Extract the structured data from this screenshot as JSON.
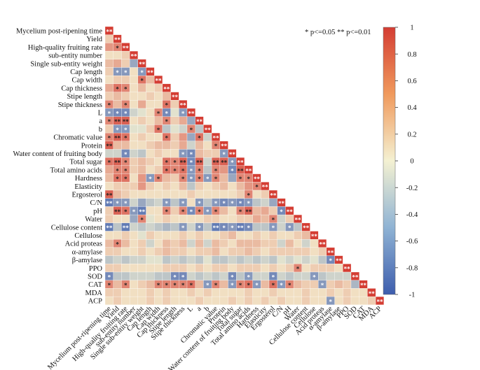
{
  "chart_data": {
    "type": "heatmap",
    "subtype": "lower-triangle correlation matrix",
    "variables": [
      "Mycelium post-ripening time",
      "Yield",
      "High-quality fruiting rate",
      "sub-entity number",
      "Single sub-entity weight",
      "Cap length",
      "Cap width",
      "Cap thickness",
      "Stipe length",
      "Stipe thickness",
      "L",
      "a",
      "b",
      "Chromatic value",
      "Protein",
      "Water content of fruiting body",
      "Total sugar",
      "Total amino acids",
      "Hardness",
      "Elasticity",
      "Ergosterol",
      "C/N",
      "pH",
      "Water",
      "Cellulose content",
      "Cellulose",
      "Acid proteas",
      "α-amylase",
      "β-amylase",
      "PPO",
      "SOD",
      "CAT",
      "MDA",
      "ACP"
    ],
    "rows": [
      [
        1
      ],
      [
        0.2,
        1
      ],
      [
        0.5,
        0.6,
        1
      ],
      [
        0.1,
        0.1,
        0.2,
        1
      ],
      [
        0.3,
        0.4,
        0.2,
        -0.5,
        1
      ],
      [
        0.2,
        -0.6,
        -0.6,
        0.1,
        -0.6,
        1
      ],
      [
        0.1,
        0.2,
        0.2,
        0.1,
        0.7,
        0.3,
        1
      ],
      [
        0.4,
        0.7,
        0.6,
        0.1,
        0.3,
        0.1,
        0.2,
        1
      ],
      [
        0.2,
        0.3,
        0.2,
        0.1,
        0.1,
        0.2,
        0.1,
        0.3,
        1
      ],
      [
        0.6,
        0.3,
        0.6,
        0.1,
        0.4,
        0.1,
        0.1,
        0.7,
        0.2,
        1
      ],
      [
        -0.6,
        -0.7,
        -0.7,
        -0.2,
        -0.1,
        0.1,
        0.6,
        -0.7,
        -0.1,
        -0.6,
        1
      ],
      [
        0.6,
        0.8,
        0.8,
        0.1,
        0.2,
        0.1,
        0.3,
        0.6,
        0.2,
        0.4,
        -0.5,
        1
      ],
      [
        0.2,
        -0.6,
        -0.6,
        -0.1,
        -0.1,
        0.2,
        0.7,
        -0.3,
        -0.1,
        -0.2,
        0.6,
        -0.3,
        1
      ],
      [
        0.6,
        0.8,
        0.7,
        0.1,
        0.2,
        0.1,
        0.1,
        0.7,
        0.2,
        0.5,
        -0.5,
        0.7,
        -0.2,
        1
      ],
      [
        0.8,
        0.3,
        0.3,
        0.1,
        0.1,
        0.2,
        0.3,
        0.3,
        0.2,
        0.4,
        -0.2,
        0.3,
        0.1,
        0.6,
        1
      ],
      [
        -0.2,
        -0.2,
        -0.7,
        -0.2,
        -0.3,
        0.1,
        0.2,
        0.1,
        0.1,
        -0.6,
        -0.7,
        0.3,
        0.2,
        0.2,
        -0.6,
        1
      ],
      [
        0.7,
        0.8,
        0.6,
        0.2,
        0.3,
        0.2,
        0.1,
        0.7,
        0.6,
        0.8,
        -0.7,
        0.8,
        -0.2,
        0.8,
        0.8,
        -0.6,
        1
      ],
      [
        0.4,
        0.6,
        0.6,
        0.2,
        0.3,
        0.1,
        0.2,
        0.7,
        0.6,
        0.7,
        -0.6,
        0.6,
        -0.3,
        0.6,
        0.5,
        -0.7,
        0.8,
        1
      ],
      [
        0.3,
        0.7,
        0.7,
        0.1,
        0.5,
        -0.6,
        0.6,
        0.3,
        0.2,
        0.6,
        -0.6,
        0.6,
        -0.6,
        0.6,
        0.3,
        -0.5,
        0.6,
        0.6,
        1
      ],
      [
        0.1,
        0.2,
        0.2,
        0.2,
        0.5,
        0.2,
        0.1,
        0.2,
        0.1,
        0.3,
        -0.3,
        0.2,
        0.1,
        0.2,
        0.3,
        0.1,
        0.3,
        0.5,
        0.6,
        1
      ],
      [
        0.8,
        0.3,
        0.2,
        0.1,
        0.1,
        0.1,
        0.1,
        0.1,
        0.1,
        0.1,
        0.2,
        0.1,
        0.1,
        0.1,
        0.1,
        0.1,
        0.2,
        0.6,
        0.1,
        0.2,
        1
      ],
      [
        -0.8,
        -0.6,
        -0.6,
        -0.2,
        -0.5,
        -0.3,
        -0.2,
        -0.6,
        -0.3,
        -0.6,
        0.1,
        -0.6,
        -0.3,
        -0.6,
        -0.7,
        -0.6,
        -0.7,
        -0.6,
        -0.3,
        -0.2,
        -0.5,
        1
      ],
      [
        0.2,
        0.8,
        0.7,
        -0.6,
        -0.8,
        0.1,
        0.1,
        0.6,
        0.2,
        0.6,
        -0.7,
        0.6,
        -0.6,
        0.6,
        0.3,
        0.1,
        0.6,
        0.8,
        0.3,
        0.4,
        0.2,
        -0.7,
        1
      ],
      [
        0.2,
        0.1,
        0.1,
        -0.5,
        0.6,
        -0.1,
        0.1,
        0.2,
        0.1,
        0.1,
        0.1,
        0.1,
        0.2,
        0.2,
        0.1,
        0.1,
        0.2,
        0.2,
        0.4,
        0.3,
        0.6,
        -0.2,
        0.2,
        1
      ],
      [
        -0.8,
        -0.3,
        -0.8,
        -0.2,
        -0.3,
        -0.2,
        -0.3,
        -0.4,
        -0.3,
        -0.6,
        -0.2,
        -0.6,
        -0.3,
        -0.8,
        -0.7,
        -0.6,
        -0.8,
        -0.7,
        -0.3,
        -0.3,
        -0.6,
        -0.2,
        -0.6,
        -0.3,
        1
      ],
      [
        0.1,
        0.1,
        0.2,
        0.1,
        -0.1,
        0.2,
        0.1,
        0.1,
        0.1,
        0.2,
        0.1,
        0.2,
        0.1,
        0.1,
        0.2,
        0.3,
        0.1,
        0.1,
        0.2,
        0.1,
        0.2,
        0.1,
        0.1,
        0.2,
        0.3,
        1
      ],
      [
        0.3,
        0.6,
        0.3,
        0.1,
        0.2,
        -0.2,
        0.1,
        0.3,
        0.2,
        0.3,
        -0.2,
        0.3,
        -0.2,
        0.3,
        0.2,
        0.1,
        0.3,
        0.3,
        0.3,
        0.2,
        0.2,
        -0.2,
        0.3,
        0.1,
        -0.2,
        0.1,
        1
      ],
      [
        0.2,
        0.2,
        0.1,
        0.1,
        0.2,
        0.1,
        0.2,
        0.3,
        0.2,
        0.2,
        0.1,
        0.2,
        0.2,
        0.3,
        0.1,
        0.2,
        0.2,
        0.3,
        0.2,
        0.1,
        0.2,
        0.2,
        0.2,
        0.2,
        0.2,
        0.1,
        0.2,
        1
      ],
      [
        -0.3,
        -0.2,
        -0.3,
        -0.2,
        -0.2,
        -0.1,
        -0.1,
        -0.3,
        -0.2,
        -0.3,
        -0.2,
        -0.3,
        -0.1,
        -0.3,
        -0.3,
        -0.2,
        -0.3,
        -0.2,
        -0.3,
        -0.2,
        -0.3,
        -0.1,
        -0.2,
        -0.1,
        -0.2,
        -0.1,
        -0.3,
        -0.7,
        1
      ],
      [
        0.2,
        0.2,
        0.1,
        0.1,
        0.1,
        0.1,
        0.1,
        0.2,
        0.2,
        0.2,
        0.1,
        0.2,
        0.1,
        0.2,
        0.2,
        0.1,
        0.2,
        0.2,
        0.2,
        0.1,
        0.2,
        0.1,
        0.2,
        0.6,
        0.1,
        0.2,
        0.2,
        0.2,
        0.1,
        1
      ],
      [
        -0.7,
        -0.3,
        -0.3,
        -0.2,
        -0.2,
        -0.2,
        -0.3,
        -0.3,
        -0.7,
        -0.7,
        -0.2,
        -0.3,
        -0.2,
        -0.3,
        -0.2,
        -0.7,
        -0.3,
        -0.6,
        -0.2,
        -0.2,
        -0.7,
        -0.2,
        -0.3,
        -0.2,
        -0.2,
        -0.6,
        -0.3,
        -0.2,
        -0.2,
        -0.2,
        1
      ],
      [
        0.6,
        0.3,
        0.6,
        0.1,
        0.2,
        0.3,
        0.6,
        0.6,
        0.6,
        0.6,
        0.7,
        0.3,
        -0.6,
        0.6,
        0.3,
        -0.6,
        0.6,
        0.7,
        -0.6,
        0.3,
        0.7,
        -0.6,
        0.6,
        0.3,
        0.2,
        0.2,
        -0.6,
        0.2,
        0.3,
        0.2,
        -0.4,
        1
      ],
      [
        0.2,
        0.2,
        0.1,
        0.1,
        0.1,
        0.2,
        0.1,
        0.2,
        0.1,
        0.1,
        0.2,
        0.1,
        0.2,
        0.1,
        0.1,
        0.1,
        0.1,
        0.2,
        0.1,
        0.1,
        0.2,
        0.1,
        0.1,
        0.1,
        0.2,
        0.1,
        0.1,
        0.2,
        0.1,
        0.2,
        0.1,
        0.1,
        1
      ],
      [
        0.1,
        0.2,
        0.1,
        0.1,
        0.1,
        0.2,
        0.1,
        0.2,
        0.1,
        0.1,
        0.1,
        0.2,
        0.1,
        0.1,
        0.1,
        0.2,
        0.1,
        0.2,
        0.1,
        0.2,
        0.1,
        0.2,
        0.1,
        0.1,
        0.2,
        0.1,
        0.1,
        -0.6,
        0.1,
        0.2,
        0.1,
        0.1,
        0.2,
        1
      ]
    ],
    "significance": {
      "strong_marker": "**",
      "weak_marker": "*",
      "strong_threshold_abs_r": 0.75,
      "weak_threshold_abs_r": 0.55
    },
    "colorbar": {
      "min": -1,
      "max": 1,
      "ticks": [
        "1",
        "0.8",
        "0.6",
        "0.4",
        "0.2",
        "0",
        "-0.2",
        "-0.4",
        "-0.6",
        "-0.8",
        "-1"
      ],
      "colors": {
        "neg": "#3d5dad",
        "mid": "#f4f1d2",
        "pos": "#d43d33"
      }
    },
    "legend_text": "* p<=0.05  ** p<=0.01"
  }
}
